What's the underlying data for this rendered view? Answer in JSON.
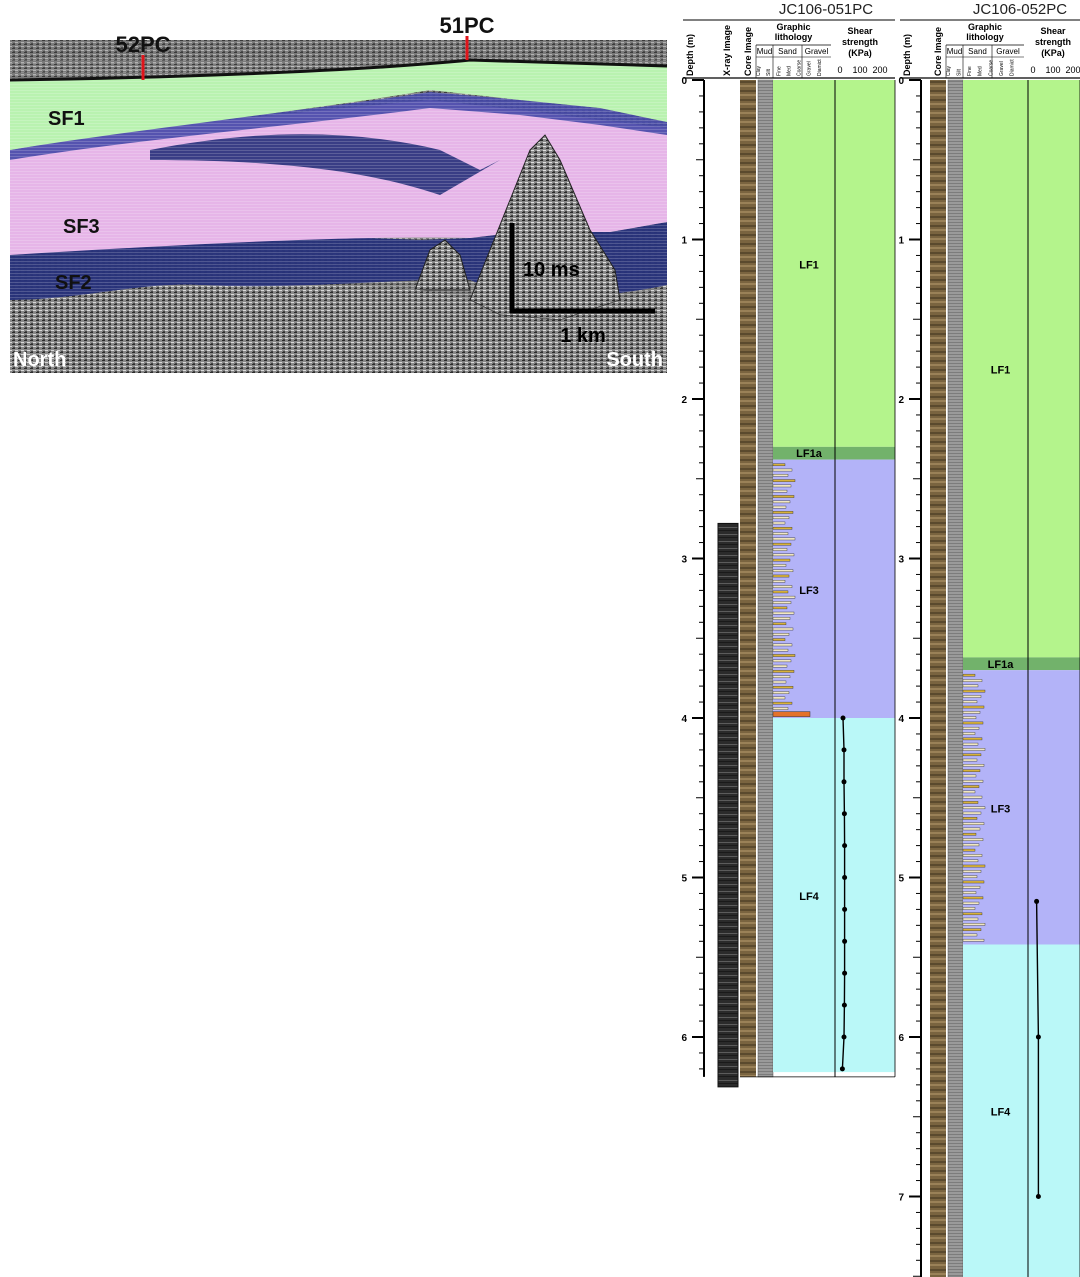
{
  "seismic": {
    "core_markers": [
      "52PC",
      "51PC"
    ],
    "facies": [
      "SF1",
      "SF3",
      "SF2"
    ],
    "direction_left": "North",
    "direction_right": "South",
    "scale_vertical": "10 ms",
    "scale_horizontal": "1 km",
    "colors": {
      "sf1": "#b9f2b0",
      "sf2": "#26307a",
      "sf3": "#e6b5e8",
      "marker": "#e0151b"
    }
  },
  "log_headers": {
    "depth": "Depth (m)",
    "xray": "X-ray Image",
    "core": "Core Image",
    "graphic": "Graphic lithology",
    "mud": "Mud",
    "sand": "Sand",
    "gravel": "Gravel",
    "grain_sizes": [
      "Clay",
      "Silt",
      "Fine",
      "Med",
      "Coarse",
      "Gravel",
      "Diamict"
    ],
    "shear": "Shear strength (KPa)",
    "shear_ticks": [
      "0",
      "100",
      "200"
    ]
  },
  "logs": [
    {
      "title": "JC106-051PC",
      "depth_ticks": [
        "0",
        "1",
        "2",
        "3",
        "4",
        "5",
        "6"
      ],
      "units": [
        {
          "label": "LF1",
          "top": 0,
          "bottom": 2.3,
          "color": "#b4f48c"
        },
        {
          "label": "LF1a",
          "top": 2.3,
          "bottom": 2.38,
          "color": "#72b26b"
        },
        {
          "label": "LF3",
          "top": 2.38,
          "bottom": 4.0,
          "color": "#b3b3f8"
        },
        {
          "label": "LF4",
          "top": 4.0,
          "bottom": 6.22,
          "color": "#baf8f8"
        }
      ],
      "shear_strength": [
        {
          "depth": 4.0,
          "kpa": 15
        },
        {
          "depth": 4.2,
          "kpa": 20
        },
        {
          "depth": 4.4,
          "kpa": 20
        },
        {
          "depth": 4.6,
          "kpa": 22
        },
        {
          "depth": 4.8,
          "kpa": 23
        },
        {
          "depth": 5.0,
          "kpa": 23
        },
        {
          "depth": 5.2,
          "kpa": 23
        },
        {
          "depth": 5.4,
          "kpa": 23
        },
        {
          "depth": 5.6,
          "kpa": 23
        },
        {
          "depth": 5.8,
          "kpa": 22
        },
        {
          "depth": 6.0,
          "kpa": 20
        },
        {
          "depth": 6.2,
          "kpa": 12
        }
      ]
    },
    {
      "title": "JC106-052PC",
      "depth_ticks": [
        "0",
        "1",
        "2",
        "3",
        "4",
        "5",
        "6",
        "7"
      ],
      "units": [
        {
          "label": "LF1",
          "top": 0,
          "bottom": 3.62,
          "color": "#b4f48c"
        },
        {
          "label": "LF1a",
          "top": 3.62,
          "bottom": 3.7,
          "color": "#72b26b"
        },
        {
          "label": "LF3",
          "top": 3.7,
          "bottom": 5.42,
          "color": "#b3b3f8"
        },
        {
          "label": "LF4",
          "top": 5.42,
          "bottom": 7.6,
          "color": "#baf8f8"
        }
      ],
      "shear_strength": [
        {
          "depth": 5.15,
          "kpa": 10
        },
        {
          "depth": 6.0,
          "kpa": 15
        },
        {
          "depth": 7.0,
          "kpa": 15
        }
      ]
    }
  ]
}
